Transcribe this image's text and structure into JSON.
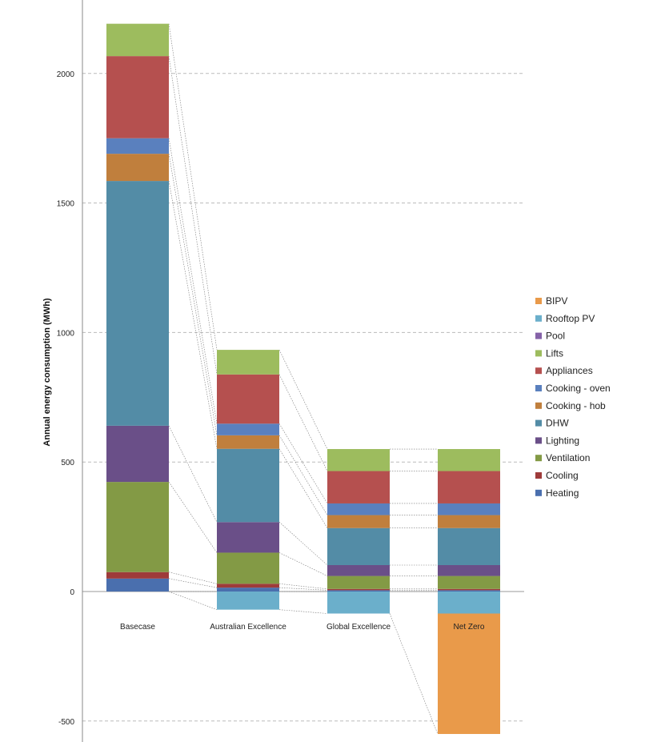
{
  "chart_data": {
    "type": "bar",
    "stacked": true,
    "ylabel": "Annual energy consumption (MWh)",
    "xlabel": "",
    "title": "",
    "ylim": [
      -560,
      2300
    ],
    "yticks": [
      -500,
      0,
      500,
      1000,
      1500,
      2000
    ],
    "grid": true,
    "legend_position": "right",
    "categories": [
      "Basecase",
      "Australian Excellence",
      "Global Excellence",
      "Net Zero"
    ],
    "series": [
      {
        "name": "Heating",
        "color": "#4F81BD",
        "values": [
          50,
          15,
          5,
          5
        ]
      },
      {
        "name": "Cooling",
        "color": "#C0504D",
        "values": [
          25,
          15,
          5,
          5
        ]
      },
      {
        "name": "Ventilation",
        "color": "#77933C",
        "values": [
          348,
          120,
          50,
          50
        ]
      },
      {
        "name": "Lighting",
        "color": "#604A7B",
        "values": [
          217,
          118,
          42,
          42
        ]
      },
      {
        "name": "DHW",
        "color": "#4BACC6",
        "values": [
          945,
          283,
          143,
          143
        ]
      },
      {
        "name": "Cooking - hob",
        "color": "#D0792B",
        "values": [
          105,
          52,
          50,
          50
        ]
      },
      {
        "name": "Cooking - oven",
        "color": "#4F81BD",
        "values": [
          60,
          45,
          45,
          45
        ]
      },
      {
        "name": "Appliances",
        "color": "#C0504D",
        "values": [
          317,
          190,
          125,
          125
        ]
      },
      {
        "name": "Lifts",
        "color": "#9BBB59",
        "values": [
          125,
          95,
          85,
          85
        ]
      },
      {
        "name": "Pool",
        "color": "#8064A2",
        "values": [
          0,
          0,
          0,
          0
        ]
      },
      {
        "name": "Rooftop PV",
        "color": "#64AFCB",
        "values": [
          0,
          -70,
          -85,
          -85
        ]
      },
      {
        "name": "BIPV",
        "color": "#E99A4A",
        "values": [
          0,
          0,
          0,
          -465
        ]
      }
    ],
    "series_display_colors": {
      "Heating": "#4A6FAE",
      "Cooling": "#9E3B3A",
      "Ventilation": "#839A45",
      "Lighting": "#6A4F88",
      "DHW": "#538CA6",
      "Cooking - hob": "#C07F3D",
      "Cooking - oven": "#5A80BE",
      "Appliances": "#B5504F",
      "Lifts": "#9DBC5E",
      "Pool": "#8562A8",
      "Rooftop PV": "#6BAFCB",
      "BIPV": "#E99A4A"
    },
    "legend_order": [
      "BIPV",
      "Rooftop PV",
      "Pool",
      "Lifts",
      "Appliances",
      "Cooking - oven",
      "Cooking - hob",
      "DHW",
      "Lighting",
      "Ventilation",
      "Cooling",
      "Heating"
    ]
  }
}
